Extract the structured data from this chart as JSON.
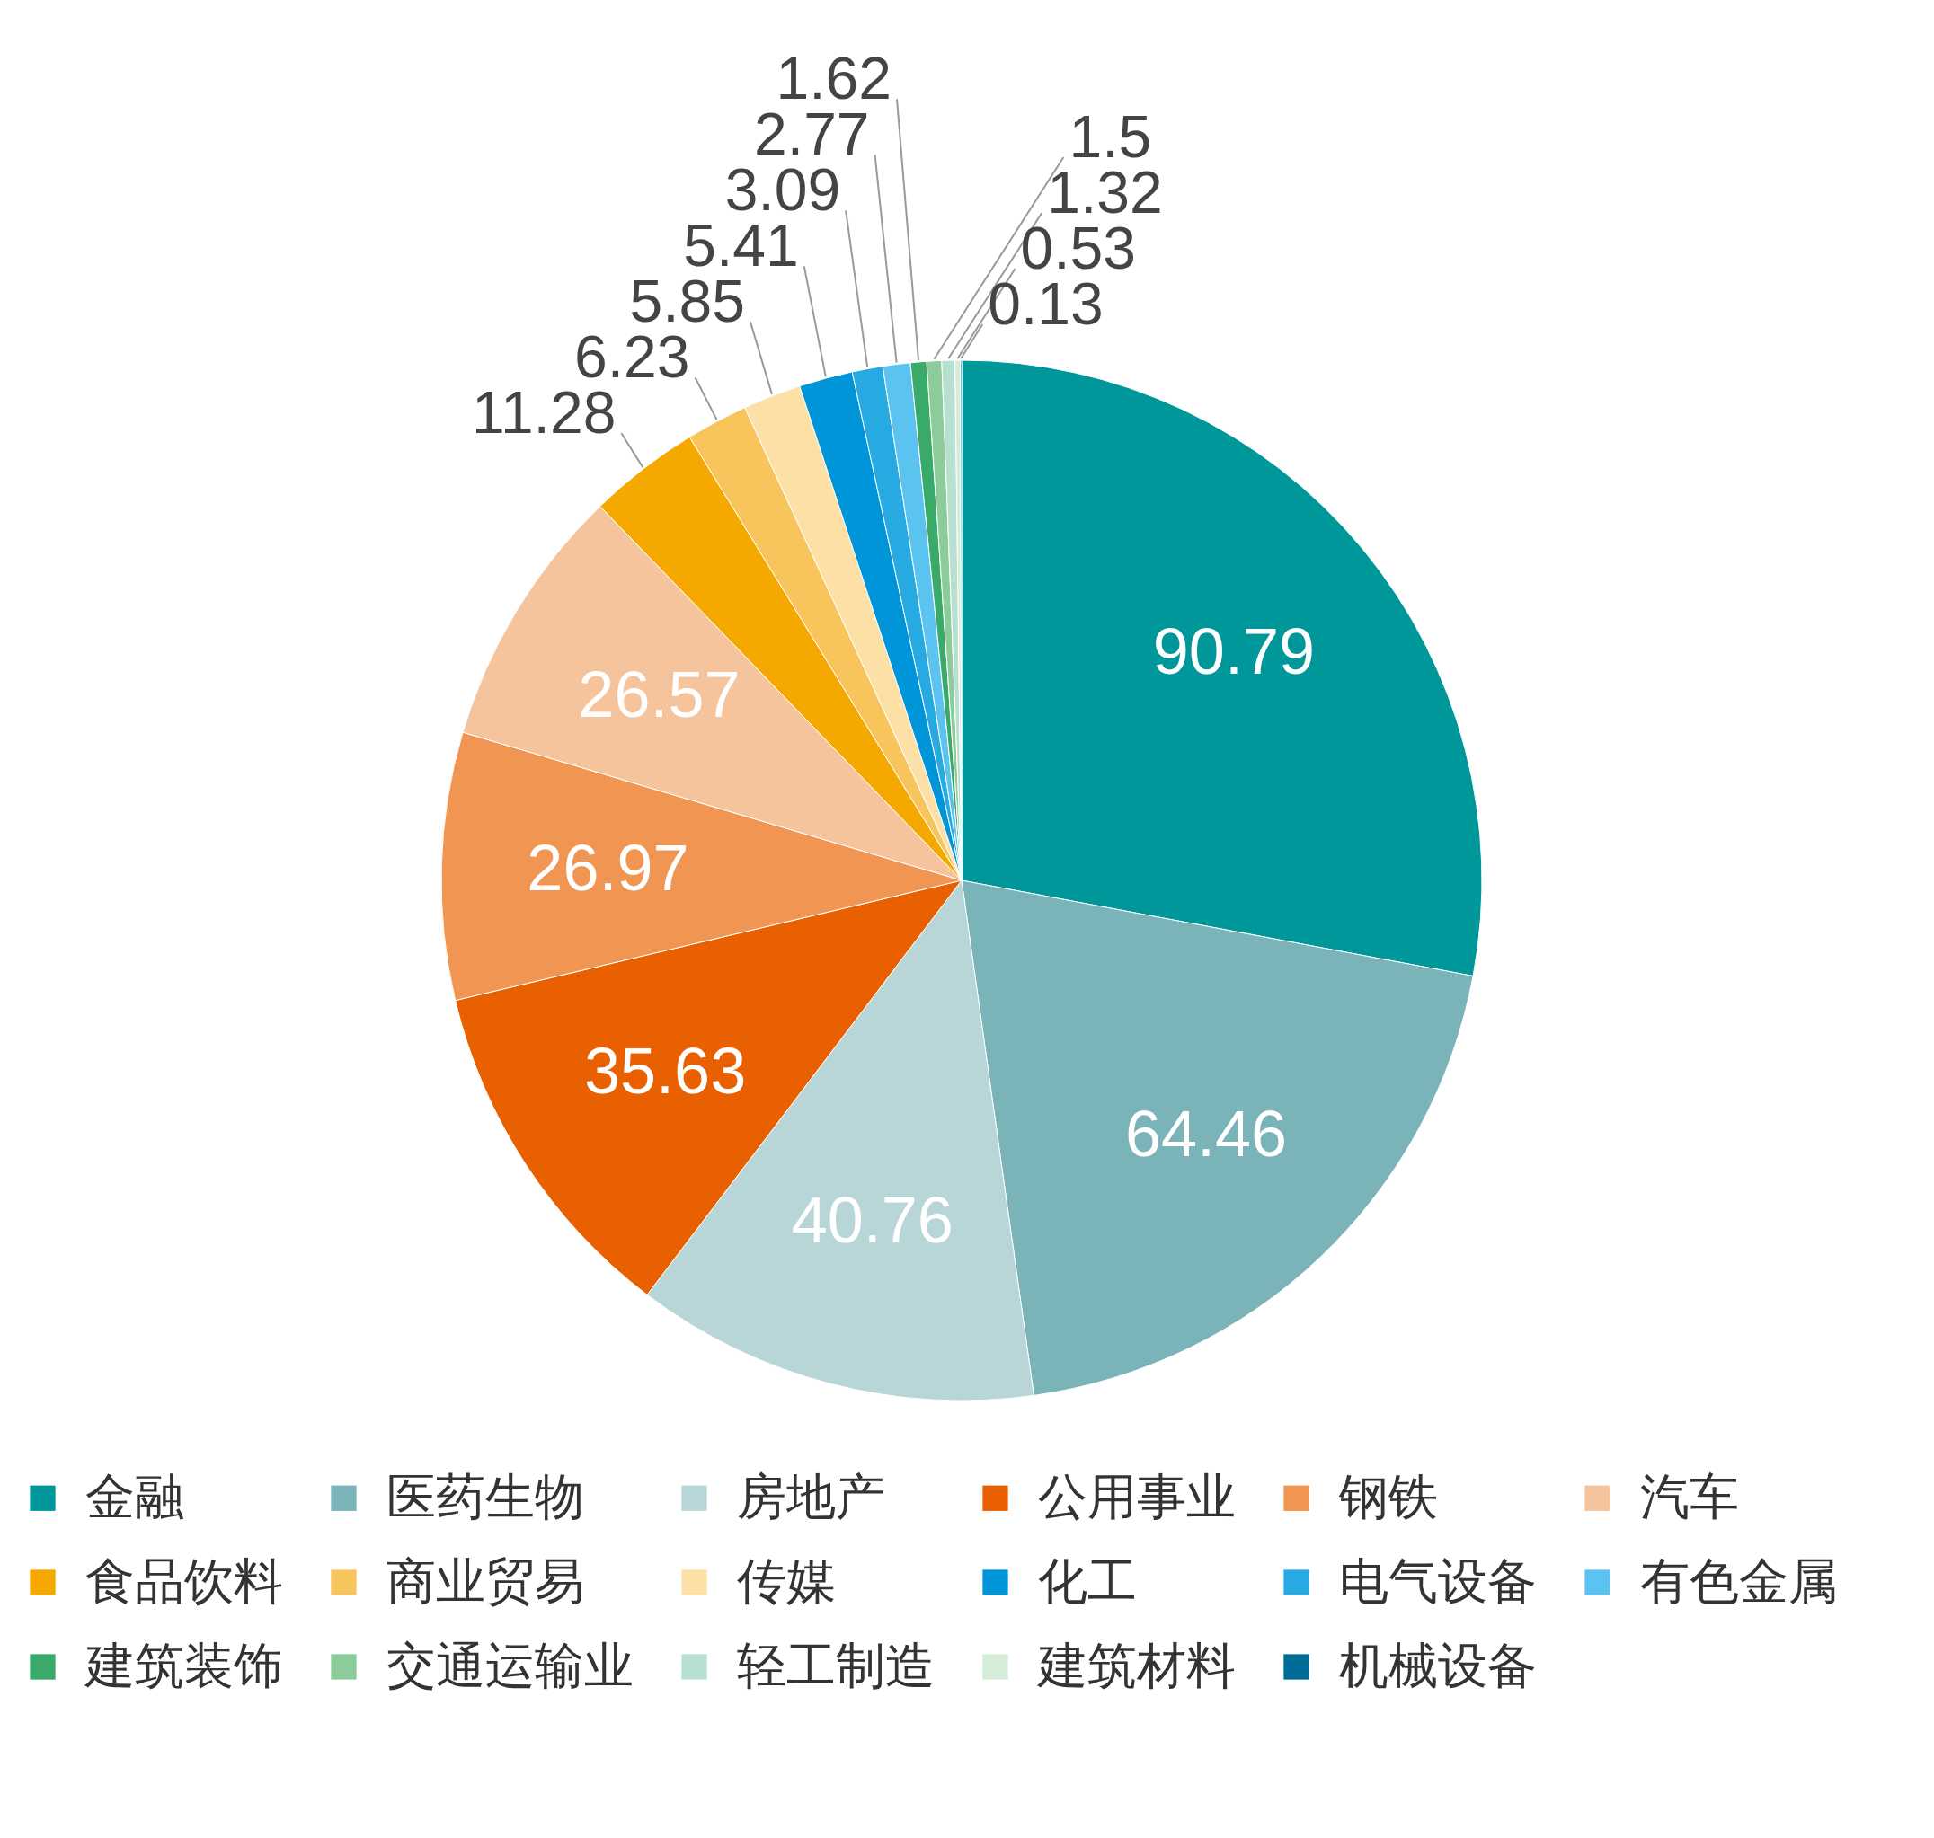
{
  "chart_data": {
    "type": "pie",
    "categories": [
      "金融",
      "医药生物",
      "房地产",
      "公用事业",
      "钢铁",
      "汽车",
      "食品饮料",
      "商业贸易",
      "传媒",
      "化工",
      "电气设备",
      "有色金属",
      "建筑装饰",
      "交通运输业",
      "轻工制造",
      "建筑材料",
      "机械设备"
    ],
    "values": [
      90.79,
      64.46,
      40.76,
      35.63,
      26.97,
      26.57,
      11.28,
      6.23,
      5.85,
      5.41,
      3.09,
      2.77,
      1.62,
      1.5,
      1.32,
      0.53,
      0.13
    ],
    "colors": [
      "#00979a",
      "#7ab3b8",
      "#b8d5d8",
      "#e86000",
      "#f09552",
      "#f6c49c",
      "#f5a800",
      "#f8c45c",
      "#fde0a6",
      "#0095d9",
      "#27aae1",
      "#5bc3ef",
      "#3aaa6b",
      "#8ccc9a",
      "#b8e0d0",
      "#d5ecd8",
      "#006b96"
    ],
    "data_labels": true,
    "legend": "bottom"
  }
}
